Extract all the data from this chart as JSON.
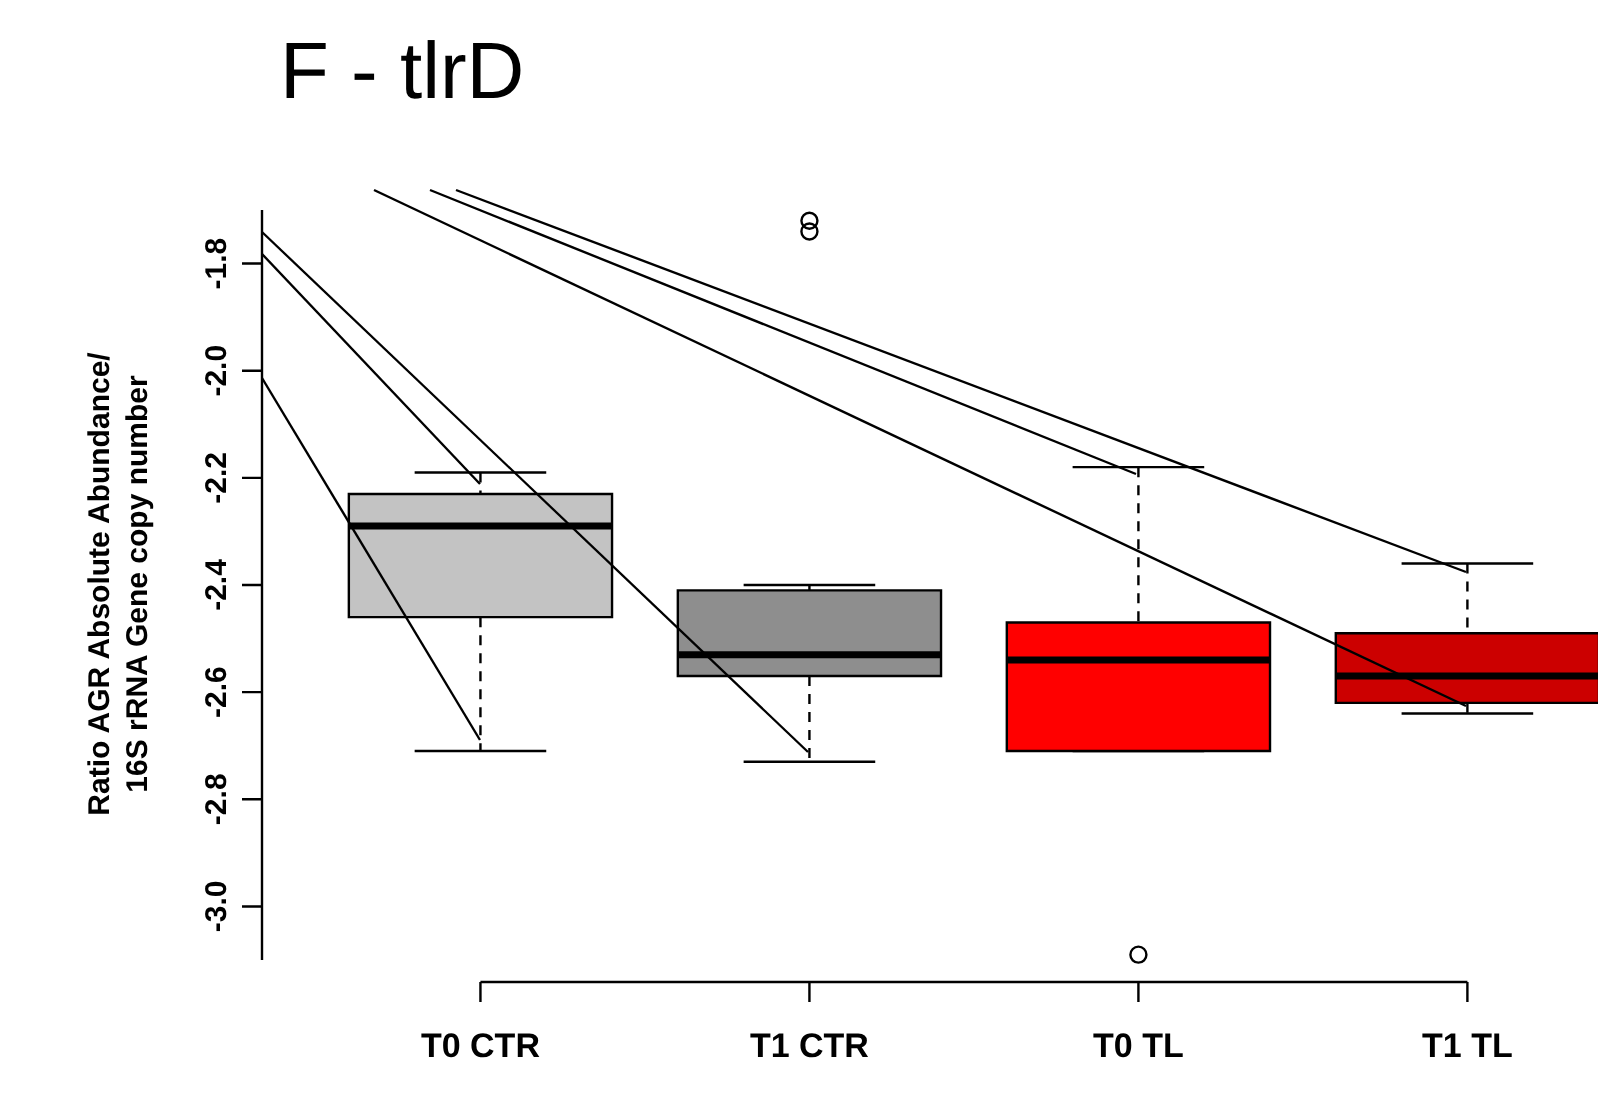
{
  "chart_data": {
    "type": "box",
    "title": "F - tlrD",
    "ylabel": "Ratio AGR Absolute Abundance/\n16S rRNA Gene copy number",
    "categories": [
      "T0 CTR",
      "T1 CTR",
      "T0 TL",
      "T1 TL"
    ],
    "colors": [
      "#c3c3c3",
      "#8e8e8e",
      "#ff0000",
      "#cc0000"
    ],
    "boxes": [
      {
        "low": -2.71,
        "q1": -2.46,
        "median": -2.29,
        "q3": -2.23,
        "high": -2.19
      },
      {
        "low": -2.73,
        "q1": -2.57,
        "median": -2.53,
        "q3": -2.41,
        "high": -2.4,
        "outliers": [
          -1.72,
          -1.74
        ]
      },
      {
        "low": -2.71,
        "q1": -2.71,
        "median": -2.54,
        "q3": -2.47,
        "high": -2.18,
        "outliers": [
          -3.09
        ]
      },
      {
        "low": -2.64,
        "q1": -2.62,
        "median": -2.57,
        "q3": -2.49,
        "high": -2.36
      }
    ],
    "ylim": [
      -3.1,
      -1.7
    ],
    "yticks": [
      -1.8,
      {
        "value": -2,
        "label": "-2.0"
      },
      -2.2,
      -2.4,
      -2.6,
      -2.8,
      {
        "value": -3,
        "label": "-3.0"
      }
    ],
    "grid": false,
    "legend": false
  }
}
